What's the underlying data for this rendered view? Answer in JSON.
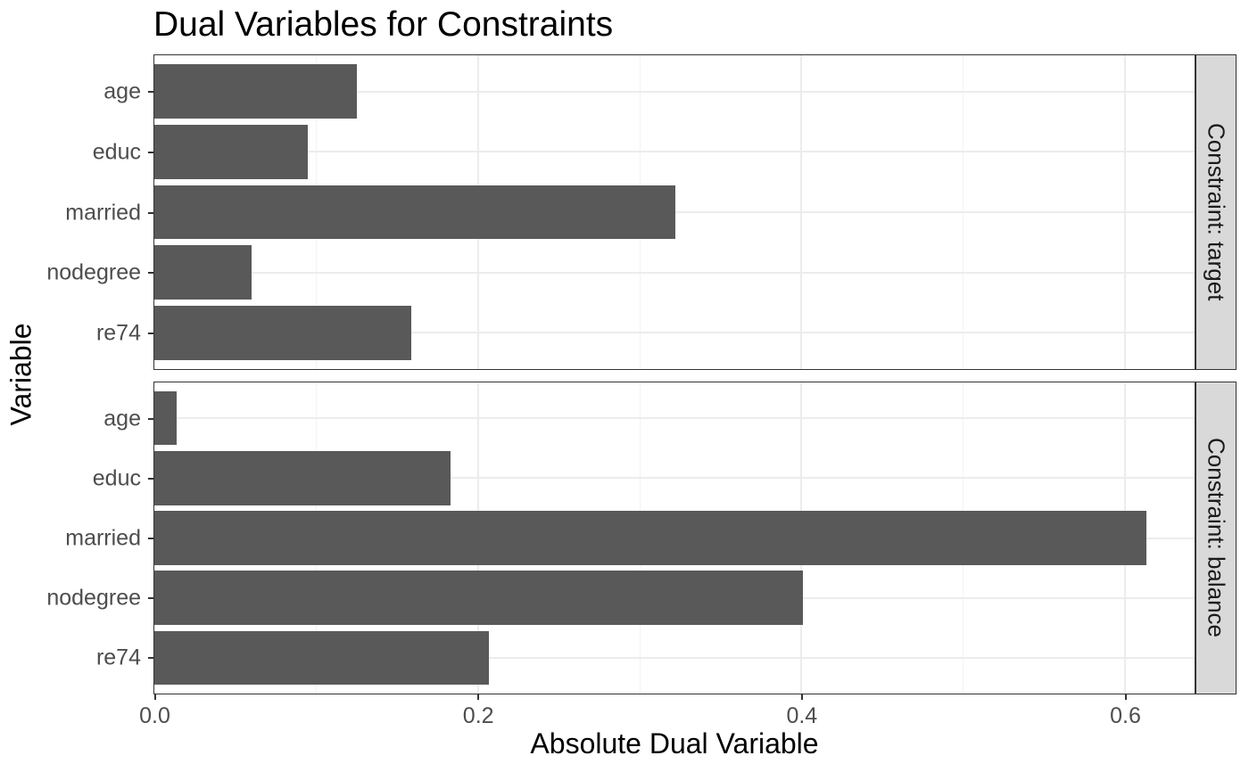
{
  "title": "Dual Variables for Constraints",
  "x_axis": {
    "label": "Absolute Dual Variable"
  },
  "y_axis": {
    "label": "Variable"
  },
  "chart_data": {
    "type": "bar",
    "orientation": "horizontal",
    "title": "Dual Variables for Constraints",
    "xlabel": "Absolute Dual Variable",
    "ylabel": "Variable",
    "categories": [
      "age",
      "educ",
      "married",
      "nodegree",
      "re74"
    ],
    "facets": [
      {
        "label": "Constraint: target",
        "values": [
          0.125,
          0.095,
          0.322,
          0.06,
          0.159
        ]
      },
      {
        "label": "Constraint: balance",
        "values": [
          0.014,
          0.183,
          0.613,
          0.401,
          0.207
        ]
      }
    ],
    "x_ticks": [
      0.0,
      0.2,
      0.4,
      0.6
    ],
    "x_tick_labels": [
      "0.0",
      "0.2",
      "0.4",
      "0.6"
    ],
    "x_minor_ticks": [
      0.1,
      0.3,
      0.5
    ],
    "xlim": [
      0,
      0.643
    ],
    "grid": true,
    "legend_position": "none",
    "colors": {
      "bar_fill": "#595959",
      "panel_border": "#333333",
      "grid_major": "#ececec",
      "grid_minor": "#f3f3f3",
      "strip_fill": "#d9d9d9",
      "strip_text": "#1a1a1a",
      "axis_text": "#4d4d4d",
      "axis_title": "#000000",
      "tick_mark": "#333333"
    }
  }
}
